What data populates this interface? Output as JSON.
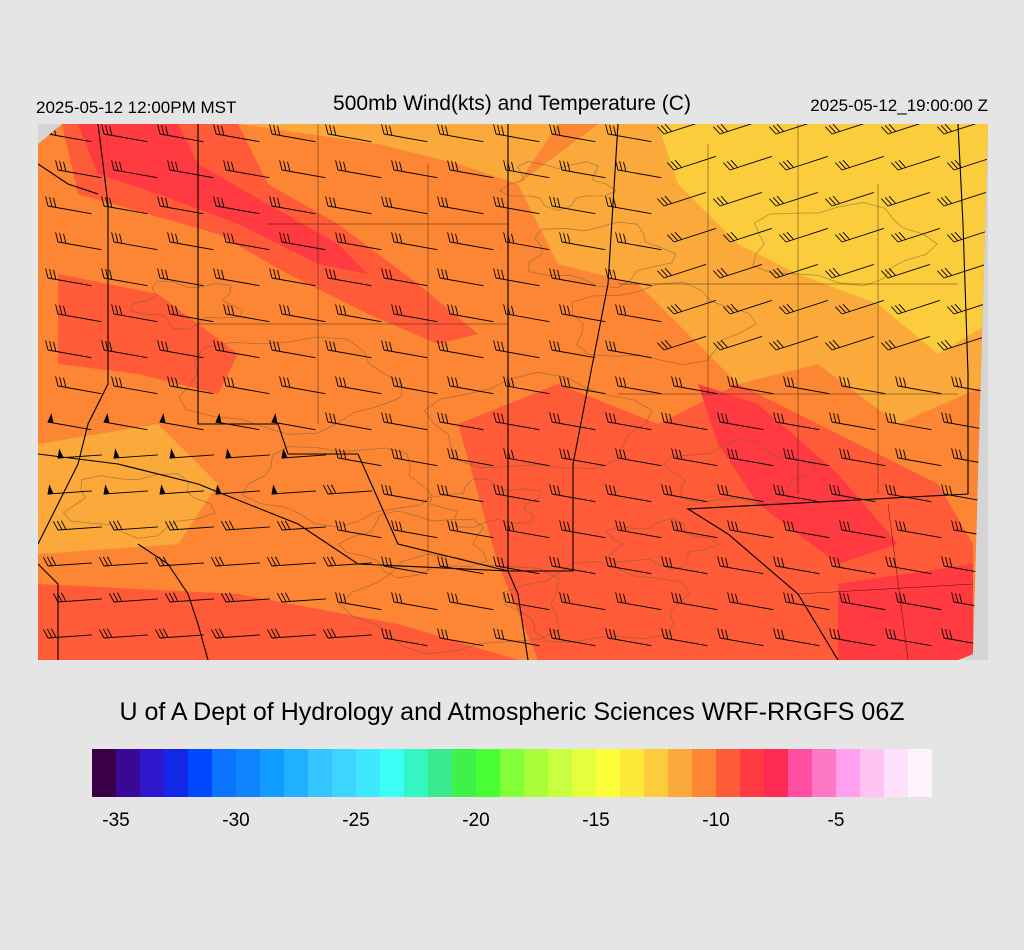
{
  "header": {
    "local_time": "2025-05-12 12:00PM MST",
    "title": "500mb Wind(kts) and Temperature (C)",
    "utc_time": "2025-05-12_19:00:00 Z"
  },
  "credit": "U of A Dept of Hydrology and Atmospheric Sciences WRF-RRGFS 06Z",
  "colorbar": {
    "colors": [
      "#3a0045",
      "#3a0896",
      "#2e16cc",
      "#1228e6",
      "#0048ff",
      "#0a74ff",
      "#0e84ff",
      "#139cff",
      "#1fb0ff",
      "#36c4ff",
      "#3dd6ff",
      "#3de8ff",
      "#3cfff6",
      "#35f6c2",
      "#38ea8c",
      "#3ef248",
      "#48ff34",
      "#82ff38",
      "#a8ff38",
      "#c8ff40",
      "#e4ff3c",
      "#fdfe3a",
      "#fbe838",
      "#fccc3c",
      "#fba93a",
      "#fc8634",
      "#ff5b38",
      "#ff3b41",
      "#ff2a53",
      "#ff4fa2",
      "#ff78c8",
      "#ffa0ee",
      "#ffc2f2",
      "#ffe0fb",
      "#fff4fd"
    ],
    "tick_labels": [
      "-35",
      "-30",
      "-25",
      "-20",
      "-15",
      "-10",
      "-5"
    ]
  },
  "map": {
    "temperature_field_colors": {
      "coldest": "#ff3b41",
      "cold": "#ff5b38",
      "mid": "#fc8634",
      "warm": "#fba93a",
      "warmest": "#fbcc3c",
      "outside": "#d4d4d4"
    },
    "wind_barb_color": "#000000",
    "contour_color": "#7a5a3a"
  }
}
